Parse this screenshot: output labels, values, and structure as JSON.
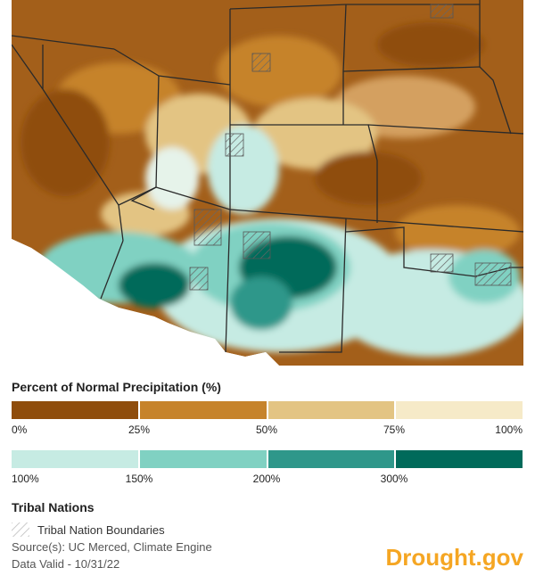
{
  "legend": {
    "title": "Percent of Normal Precipitation (%)",
    "dry_colors": [
      "#8f4d0c",
      "#c6832b",
      "#e3c483",
      "#f6eac8"
    ],
    "wet_colors": [
      "#c6ebe3",
      "#80d1c2",
      "#2f978a",
      "#006a5a"
    ],
    "dry_ticks": [
      "0%",
      "25%",
      "50%",
      "75%",
      "100%"
    ],
    "wet_ticks": [
      "100%",
      "150%",
      "200%",
      "300%"
    ]
  },
  "tribal": {
    "heading": "Tribal Nations",
    "label": "Tribal Nation Boundaries",
    "swatch_icon": "diagonal-hatch-icon"
  },
  "source_text": "Source(s): UC Merced, Climate Engine",
  "valid_text": "Data Valid - 10/31/22",
  "brand": "Drought.gov",
  "colors": {
    "background": "#ffffff",
    "state_border": "#2a2a2a",
    "brand": "#f5a623"
  }
}
